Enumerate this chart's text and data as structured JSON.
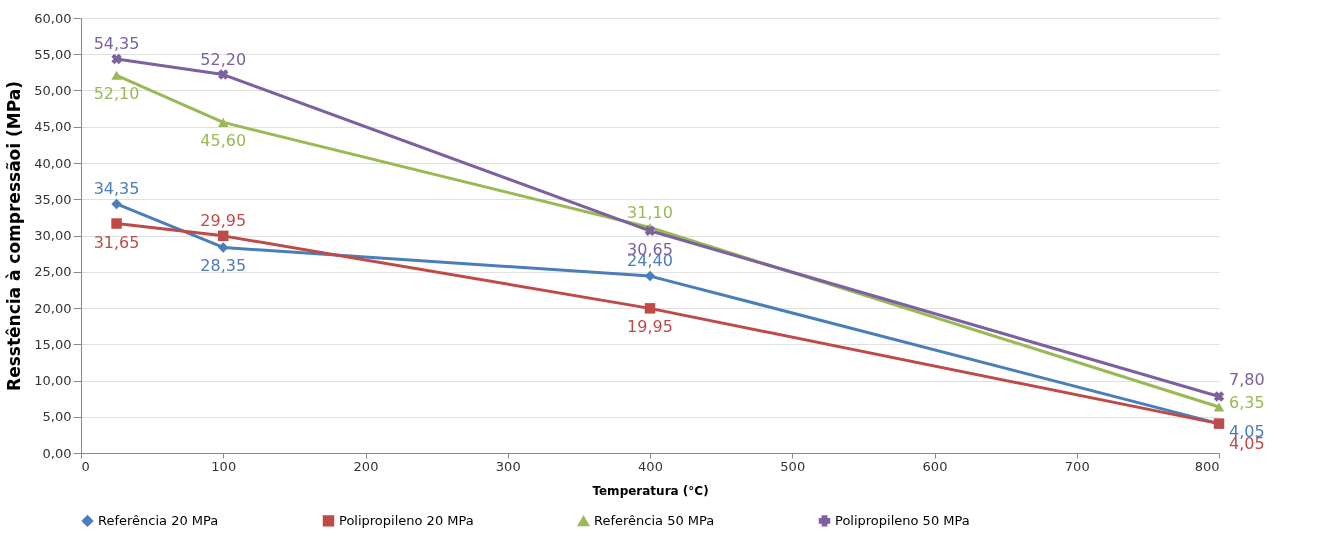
{
  "chart_data": {
    "type": "line",
    "xlabel": "Temperatura (°C)",
    "ylabel": "Resstência à compressãoi (MPa)",
    "x": [
      25,
      100,
      400,
      800
    ],
    "series": [
      {
        "name": "Referência 20 MPa",
        "color": "#4a7ebb",
        "marker": "diamond",
        "values": [
          34.35,
          28.35,
          24.4,
          4.05
        ],
        "value_labels": [
          "34,35",
          "28,35",
          "24,40",
          "4,05"
        ]
      },
      {
        "name": "Polipropileno 20 MPa",
        "color": "#be4b48",
        "marker": "square",
        "values": [
          31.65,
          29.95,
          19.95,
          4.05
        ],
        "value_labels": [
          "31,65",
          "29,95",
          "19,95",
          "4,05"
        ]
      },
      {
        "name": "Referência 50 MPa",
        "color": "#98b954",
        "marker": "triangle",
        "values": [
          52.1,
          45.6,
          31.1,
          6.35
        ],
        "value_labels": [
          "52,10",
          "45,60",
          "31,10",
          "6,35"
        ]
      },
      {
        "name": "Polipropileno 50 MPa",
        "color": "#7d60a0",
        "marker": "cross",
        "values": [
          54.35,
          52.2,
          30.65,
          7.8
        ],
        "value_labels": [
          "54,35",
          "52,20",
          "30,65",
          "7,80"
        ]
      }
    ],
    "xlim": [
      0,
      800
    ],
    "xticks": [
      0,
      100,
      200,
      300,
      400,
      500,
      600,
      700,
      800
    ],
    "ylim": [
      0,
      60
    ],
    "yticks": [
      {
        "value": 0,
        "label": "0,00"
      },
      {
        "value": 5,
        "label": "5,00"
      },
      {
        "value": 10,
        "label": "10,00"
      },
      {
        "value": 15,
        "label": "15,00"
      },
      {
        "value": 20,
        "label": "20,00"
      },
      {
        "value": 25,
        "label": "25,00"
      },
      {
        "value": 30,
        "label": "30,00"
      },
      {
        "value": 35,
        "label": "35,00"
      },
      {
        "value": 40,
        "label": "40,00"
      },
      {
        "value": 45,
        "label": "45,00"
      },
      {
        "value": 50,
        "label": "50,00"
      },
      {
        "value": 55,
        "label": "55,00"
      },
      {
        "value": 60,
        "label": "60,00"
      }
    ],
    "grid": "y",
    "legend": "bottom",
    "line_style": "solid"
  }
}
